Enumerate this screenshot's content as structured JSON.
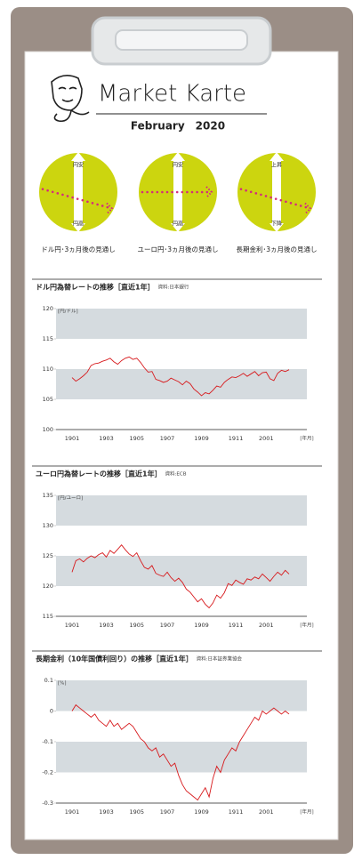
{
  "header": {
    "title": "Market Karte",
    "date": "February　2020"
  },
  "outlooks": [
    {
      "top": "円安",
      "bottom": "円高",
      "caption": "ドル円･3ヵ月後の見通し"
    },
    {
      "top": "円安",
      "bottom": "円高",
      "caption": "ユーロ円･3ヵ月後の見通し"
    },
    {
      "top": "上昇",
      "bottom": "下降",
      "caption": "長期金利･3ヵ月後の見通し"
    }
  ],
  "chart_data": [
    {
      "type": "line",
      "title": "ドル円為替レートの推移［直近1年］",
      "source": "資料:日本銀行",
      "y_unit_label": "[円/ドル]",
      "x_unit_label": "[年月]",
      "categories": [
        "1901",
        null,
        null,
        null,
        null,
        null,
        null,
        null,
        null,
        "1903",
        null,
        null,
        null,
        null,
        null,
        null,
        null,
        "1905",
        null,
        null,
        null,
        null,
        null,
        null,
        null,
        "1907",
        null,
        null,
        null,
        null,
        null,
        null,
        null,
        null,
        "1909",
        null,
        null,
        null,
        null,
        null,
        null,
        null,
        null,
        "1911",
        null,
        null,
        null,
        null,
        null,
        null,
        null,
        "2001",
        null,
        null,
        null,
        null,
        null,
        null
      ],
      "series": [
        {
          "color": "#d7191c",
          "values": [
            108.6,
            108.0,
            108.4,
            108.9,
            109.5,
            110.6,
            110.9,
            111.0,
            111.3,
            111.5,
            111.8,
            111.2,
            110.8,
            111.4,
            111.8,
            112.0,
            111.6,
            111.8,
            111.1,
            110.2,
            109.5,
            109.6,
            108.3,
            108.1,
            107.8,
            108.0,
            108.5,
            108.2,
            107.9,
            107.4,
            108.0,
            107.6,
            106.7,
            106.2,
            105.6,
            106.1,
            105.9,
            106.5,
            107.2,
            107.0,
            107.8,
            108.3,
            108.7,
            108.6,
            108.9,
            109.3,
            108.8,
            109.2,
            109.6,
            108.9,
            109.4,
            109.5,
            108.4,
            108.1,
            109.3,
            109.8,
            109.6,
            109.9
          ]
        }
      ],
      "ylim": [
        100,
        120
      ],
      "yticks": [
        100,
        105,
        110,
        115,
        120
      ],
      "grid": true
    },
    {
      "type": "line",
      "title": "ユーロ円為替レートの推移［直近1年］",
      "source": "資料:ECB",
      "y_unit_label": "[円/ユーロ]",
      "x_unit_label": "[年月]",
      "categories": [
        "1901",
        null,
        null,
        null,
        null,
        null,
        null,
        null,
        null,
        "1903",
        null,
        null,
        null,
        null,
        null,
        null,
        null,
        "1905",
        null,
        null,
        null,
        null,
        null,
        null,
        null,
        "1907",
        null,
        null,
        null,
        null,
        null,
        null,
        null,
        null,
        "1909",
        null,
        null,
        null,
        null,
        null,
        null,
        null,
        null,
        "1911",
        null,
        null,
        null,
        null,
        null,
        null,
        null,
        "2001",
        null,
        null,
        null,
        null,
        null,
        null
      ],
      "series": [
        {
          "color": "#d7191c",
          "values": [
            122.3,
            124.2,
            124.5,
            124.0,
            124.6,
            125.0,
            124.7,
            125.2,
            125.5,
            124.8,
            125.9,
            125.4,
            126.1,
            126.8,
            126.0,
            125.3,
            124.9,
            125.5,
            124.2,
            123.1,
            122.8,
            123.4,
            122.1,
            121.8,
            121.6,
            122.3,
            121.4,
            120.8,
            121.3,
            120.6,
            119.5,
            119.0,
            118.2,
            117.4,
            117.9,
            117.0,
            116.4,
            117.2,
            118.5,
            118.0,
            118.9,
            120.4,
            120.1,
            121.0,
            120.6,
            120.3,
            121.2,
            121.0,
            121.5,
            121.2,
            122.0,
            121.4,
            120.8,
            121.6,
            122.3,
            121.8,
            122.6,
            122.0
          ]
        }
      ],
      "ylim": [
        115,
        135
      ],
      "yticks": [
        115,
        120,
        125,
        130,
        135
      ],
      "grid": true
    },
    {
      "type": "line",
      "title": "長期金利（10年国債利回り）の推移［直近1年］",
      "source": "資料:日本証券業協会",
      "y_unit_label": "[%]",
      "x_unit_label": "[年月]",
      "categories": [
        "1901",
        null,
        null,
        null,
        null,
        null,
        null,
        null,
        null,
        "1903",
        null,
        null,
        null,
        null,
        null,
        null,
        null,
        "1905",
        null,
        null,
        null,
        null,
        null,
        null,
        null,
        "1907",
        null,
        null,
        null,
        null,
        null,
        null,
        null,
        null,
        "1909",
        null,
        null,
        null,
        null,
        null,
        null,
        null,
        null,
        "1911",
        null,
        null,
        null,
        null,
        null,
        null,
        null,
        "2001",
        null,
        null,
        null,
        null,
        null,
        null
      ],
      "series": [
        {
          "color": "#d7191c",
          "values": [
            0.0,
            0.02,
            0.01,
            0.0,
            -0.01,
            -0.02,
            -0.01,
            -0.03,
            -0.04,
            -0.05,
            -0.03,
            -0.05,
            -0.04,
            -0.06,
            -0.05,
            -0.04,
            -0.05,
            -0.07,
            -0.09,
            -0.1,
            -0.12,
            -0.13,
            -0.12,
            -0.15,
            -0.14,
            -0.16,
            -0.18,
            -0.17,
            -0.21,
            -0.24,
            -0.26,
            -0.27,
            -0.28,
            -0.29,
            -0.27,
            -0.25,
            -0.28,
            -0.22,
            -0.18,
            -0.2,
            -0.16,
            -0.14,
            -0.12,
            -0.13,
            -0.1,
            -0.08,
            -0.06,
            -0.04,
            -0.02,
            -0.03,
            0.0,
            -0.01,
            0.0,
            0.01,
            0.0,
            -0.01,
            0.0,
            -0.01
          ]
        }
      ],
      "ylim": [
        -0.3,
        0.1
      ],
      "yticks": [
        -0.3,
        -0.2,
        -0.1,
        0,
        0.1
      ],
      "grid": true
    }
  ]
}
